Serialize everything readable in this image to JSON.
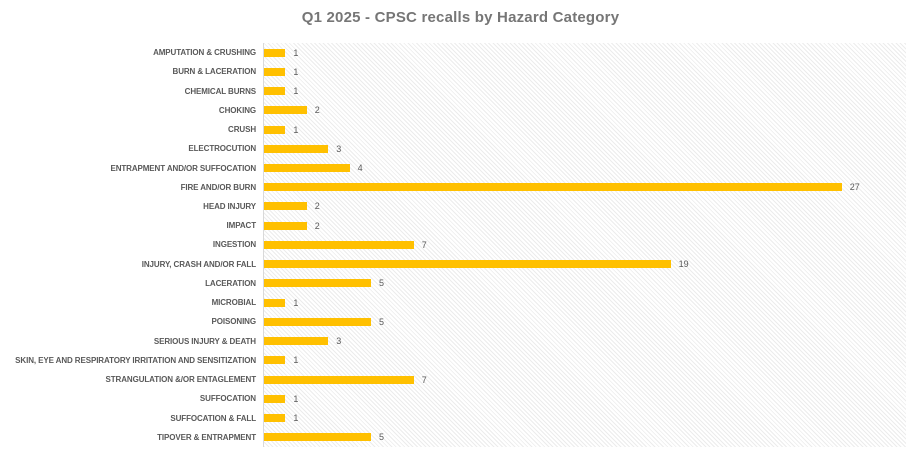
{
  "chart_data": {
    "type": "bar",
    "orientation": "horizontal",
    "title": "Q1 2025 - CPSC recalls by Hazard Category",
    "categories": [
      "AMPUTATION & CRUSHING",
      "BURN & LACERATION",
      "CHEMICAL BURNS",
      "CHOKING",
      "CRUSH",
      "ELECTROCUTION",
      "ENTRAPMENT AND/OR SUFFOCATION",
      "FIRE AND/OR BURN",
      "HEAD INJURY",
      "IMPACT",
      "INGESTION",
      "INJURY, CRASH AND/OR FALL",
      "LACERATION",
      "MICROBIAL",
      "POISONING",
      "SERIOUS INJURY & DEATH",
      "SKIN, EYE AND RESPIRATORY IRRITATION AND SENSITIZATION",
      "STRANGULATION &/OR ENTAGLEMENT",
      "SUFFOCATION",
      "SUFFOCATION & FALL",
      "TIPOVER & ENTRAPMENT"
    ],
    "values": [
      1,
      1,
      1,
      2,
      1,
      3,
      4,
      27,
      2,
      2,
      7,
      19,
      5,
      1,
      5,
      3,
      1,
      7,
      1,
      1,
      5
    ],
    "xlabel": "",
    "ylabel": "",
    "xlim": [
      0,
      30
    ],
    "grid": false,
    "legend": false,
    "data_labels": true,
    "bar_color": "#FFC000",
    "label_color": "#595959",
    "title_color": "#767676",
    "axis_line_color": "#d9d9d9"
  }
}
